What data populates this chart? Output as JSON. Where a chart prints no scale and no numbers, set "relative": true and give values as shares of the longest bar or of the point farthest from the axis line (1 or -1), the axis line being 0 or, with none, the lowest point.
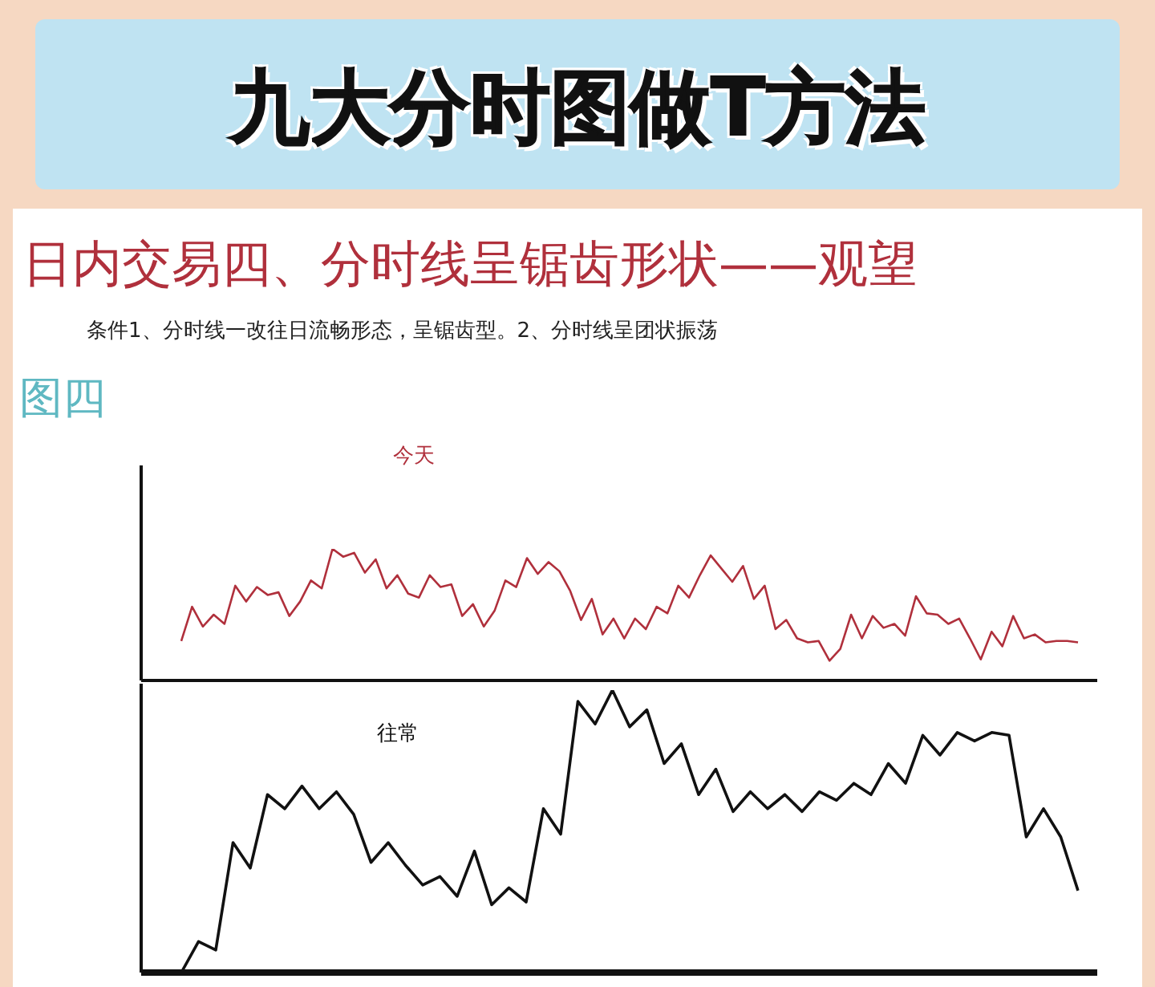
{
  "chart_data": [
    {
      "type": "line",
      "title": "九大分时图做T方法",
      "subtitle": "日内交易四、分时线呈锯齿形状——观望",
      "annotations": [
        "条件1、分时线一改往日流畅形态，呈锯齿型。2、分时线呈团状振荡",
        "图四"
      ],
      "relative": true,
      "categories": [
        null,
        null,
        null,
        null,
        null,
        null,
        null,
        null,
        null,
        null,
        null,
        null,
        null,
        null,
        null,
        null,
        null,
        null,
        null,
        null,
        null,
        null,
        null,
        null,
        null,
        null,
        null,
        null,
        null,
        null,
        null,
        null,
        null,
        null,
        null,
        null,
        null,
        null,
        null,
        null,
        null,
        null,
        null,
        null,
        null,
        null,
        null,
        null,
        null,
        null,
        null,
        null,
        null,
        null,
        null,
        null,
        null,
        null,
        null,
        null,
        null,
        null,
        null,
        null,
        null,
        null,
        null,
        null,
        null,
        null,
        null,
        null,
        null,
        null,
        null,
        null,
        null,
        null,
        null,
        null,
        null,
        null,
        null,
        null
      ],
      "series": [
        {
          "name": "今天",
          "color": "#b0303c",
          "values": [
            0.3,
            0.56,
            0.41,
            0.5,
            0.43,
            0.72,
            0.6,
            0.71,
            0.65,
            0.67,
            0.49,
            0.6,
            0.76,
            0.7,
            1,
            0.94,
            0.97,
            0.82,
            0.92,
            0.7,
            0.8,
            0.66,
            0.63,
            0.8,
            0.71,
            0.73,
            0.49,
            0.58,
            0.41,
            0.53,
            0.76,
            0.71,
            0.93,
            0.81,
            0.9,
            0.83,
            0.68,
            0.46,
            0.62,
            0.35,
            0.47,
            0.32,
            0.47,
            0.39,
            0.56,
            0.51,
            0.72,
            0.63,
            0.8,
            0.95,
            0.85,
            0.75,
            0.87,
            0.62,
            0.72,
            0.39,
            0.46,
            0.32,
            0.29,
            0.3,
            0.15,
            0.24,
            0.5,
            0.32,
            0.49,
            0.4,
            0.43,
            0.34,
            0.64,
            0.51,
            0.5,
            0.43,
            0.47,
            0.32,
            0.16,
            0.37,
            0.26,
            0.49,
            0.32,
            0.35,
            0.29,
            0.3,
            0.3,
            0.29
          ]
        }
      ]
    },
    {
      "type": "line",
      "relative": true,
      "categories": [
        null,
        null,
        null,
        null,
        null,
        null,
        null,
        null,
        null,
        null,
        null,
        null,
        null,
        null,
        null,
        null,
        null,
        null,
        null,
        null,
        null,
        null,
        null,
        null,
        null,
        null,
        null,
        null,
        null,
        null,
        null,
        null,
        null,
        null,
        null,
        null,
        null,
        null,
        null,
        null,
        null,
        null,
        null,
        null,
        null,
        null,
        null,
        null,
        null,
        null,
        null,
        null,
        null
      ],
      "series": [
        {
          "name": "往常",
          "color": "#111111",
          "values": [
            0,
            0.11,
            0.08,
            0.46,
            0.37,
            0.63,
            0.58,
            0.66,
            0.58,
            0.64,
            0.56,
            0.39,
            0.46,
            0.38,
            0.31,
            0.34,
            0.27,
            0.43,
            0.24,
            0.3,
            0.25,
            0.58,
            0.49,
            0.96,
            0.88,
            1,
            0.87,
            0.93,
            0.74,
            0.81,
            0.63,
            0.72,
            0.57,
            0.64,
            0.58,
            0.63,
            0.57,
            0.64,
            0.61,
            0.67,
            0.63,
            0.74,
            0.67,
            0.84,
            0.77,
            0.85,
            0.82,
            0.85,
            0.84,
            0.48,
            0.58,
            0.48,
            0.29
          ]
        }
      ]
    }
  ]
}
